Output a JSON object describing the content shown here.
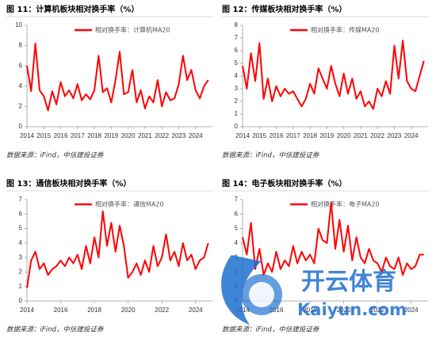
{
  "chart_data": [
    {
      "type": "line",
      "title": "图 11：计算机板块相对换手率（%）",
      "source": "数据来源：iFind，中信建投证券",
      "x": [
        2014,
        2014.25,
        2014.5,
        2014.75,
        2015,
        2015.25,
        2015.5,
        2015.75,
        2016,
        2016.25,
        2016.5,
        2016.75,
        2017,
        2017.25,
        2017.5,
        2017.75,
        2018,
        2018.25,
        2018.5,
        2018.75,
        2019,
        2019.25,
        2019.5,
        2019.75,
        2020,
        2020.25,
        2020.5,
        2020.75,
        2021,
        2021.25,
        2021.5,
        2021.75,
        2022,
        2022.25,
        2022.5,
        2022.75,
        2023,
        2023.25,
        2023.5,
        2023.75,
        2024,
        2024.25,
        2024.5,
        2024.75
      ],
      "series": [
        {
          "name": "相对换手率：计算机MA20",
          "color": "#ff0000",
          "values": [
            6.0,
            3.5,
            8.2,
            3.6,
            3.0,
            1.6,
            3.5,
            2.2,
            4.4,
            3.0,
            3.6,
            2.8,
            4.2,
            2.6,
            3.2,
            2.7,
            3.6,
            7.0,
            3.4,
            3.8,
            2.4,
            4.6,
            7.4,
            3.2,
            3.4,
            5.6,
            2.4,
            3.6,
            1.8,
            3.0,
            2.4,
            4.6,
            2.0,
            3.4,
            2.6,
            2.8,
            4.2,
            7.0,
            4.6,
            5.6,
            3.6,
            2.8,
            4.0,
            4.6
          ]
        }
      ],
      "xlim": [
        2014,
        2025
      ],
      "xticks": [
        2014,
        2015,
        2016,
        2017,
        2018,
        2019,
        2020,
        2021,
        2022,
        2023,
        2024
      ],
      "ylim": [
        0,
        10
      ],
      "yticks": [
        0,
        2,
        4,
        6,
        8,
        10
      ]
    },
    {
      "type": "line",
      "title": "图 12：传媒板块相对换手率（%）",
      "source": "数据来源：iFind，中信建投证券",
      "x": [
        2014,
        2014.25,
        2014.5,
        2014.75,
        2015,
        2015.25,
        2015.5,
        2015.75,
        2016,
        2016.25,
        2016.5,
        2016.75,
        2017,
        2017.25,
        2017.5,
        2017.75,
        2018,
        2018.25,
        2018.5,
        2018.75,
        2019,
        2019.25,
        2019.5,
        2019.75,
        2020,
        2020.25,
        2020.5,
        2020.75,
        2021,
        2021.25,
        2021.5,
        2021.75,
        2022,
        2022.25,
        2022.5,
        2022.75,
        2023,
        2023.25,
        2023.5,
        2023.75,
        2024,
        2024.25,
        2024.5,
        2024.75
      ],
      "series": [
        {
          "name": "相对换手率：传媒MA20",
          "color": "#ff0000",
          "values": [
            4.8,
            3.0,
            5.8,
            3.6,
            6.6,
            2.2,
            3.8,
            2.0,
            3.2,
            2.4,
            3.0,
            2.6,
            2.8,
            2.2,
            1.6,
            2.2,
            3.4,
            2.6,
            4.6,
            3.8,
            3.0,
            4.8,
            3.4,
            2.4,
            4.2,
            2.6,
            3.8,
            2.2,
            2.8,
            1.6,
            2.0,
            1.4,
            3.0,
            2.4,
            3.6,
            2.6,
            6.4,
            3.8,
            6.8,
            3.6,
            3.0,
            2.8,
            4.0,
            5.2
          ]
        }
      ],
      "xlim": [
        2014,
        2025
      ],
      "xticks": [
        2014,
        2015,
        2016,
        2017,
        2018,
        2019,
        2020,
        2021,
        2022,
        2023,
        2024
      ],
      "ylim": [
        0,
        8
      ],
      "yticks": [
        0,
        1,
        2,
        3,
        4,
        5,
        6,
        7,
        8
      ]
    },
    {
      "type": "line",
      "title": "图 13：通信板块相对换手率（%）",
      "source": "数据来源：iFind，中信建投证券",
      "x": [
        2014,
        2014.25,
        2014.5,
        2014.75,
        2015,
        2015.25,
        2015.5,
        2015.75,
        2016,
        2016.25,
        2016.5,
        2016.75,
        2017,
        2017.25,
        2017.5,
        2017.75,
        2018,
        2018.25,
        2018.5,
        2018.75,
        2019,
        2019.25,
        2019.5,
        2019.75,
        2020,
        2020.25,
        2020.5,
        2020.75,
        2021,
        2021.25,
        2021.5,
        2021.75,
        2022,
        2022.25,
        2022.5,
        2022.75,
        2023,
        2023.25,
        2023.5,
        2023.75,
        2024,
        2024.25,
        2024.5,
        2024.75
      ],
      "series": [
        {
          "name": "相对换手率：通信MA20",
          "color": "#ff0000",
          "values": [
            0.9,
            2.8,
            3.4,
            2.2,
            2.6,
            1.8,
            2.2,
            2.4,
            2.8,
            2.4,
            3.0,
            2.6,
            3.2,
            2.2,
            3.8,
            2.6,
            4.4,
            3.0,
            6.2,
            3.8,
            5.4,
            3.4,
            5.2,
            3.8,
            1.6,
            2.0,
            2.6,
            1.8,
            2.8,
            2.0,
            3.8,
            2.4,
            3.0,
            4.6,
            2.8,
            3.4,
            2.4,
            4.0,
            2.8,
            3.2,
            2.2,
            2.8,
            3.0,
            4.0
          ]
        }
      ],
      "xlim": [
        2014,
        2025
      ],
      "xticks": [
        2014,
        2016,
        2018,
        2020,
        2022,
        2024
      ],
      "ylim": [
        0,
        7
      ],
      "yticks": [
        0,
        1,
        2,
        3,
        4,
        5,
        6,
        7
      ]
    },
    {
      "type": "line",
      "title": "图 14：电子板块相对换手率（%）",
      "source": "数据来源：iFind，中信建投证券",
      "x": [
        2014,
        2014.25,
        2014.5,
        2014.75,
        2015,
        2015.25,
        2015.5,
        2015.75,
        2016,
        2016.25,
        2016.5,
        2016.75,
        2017,
        2017.25,
        2017.5,
        2017.75,
        2018,
        2018.25,
        2018.5,
        2018.75,
        2019,
        2019.25,
        2019.5,
        2019.75,
        2020,
        2020.25,
        2020.5,
        2020.75,
        2021,
        2021.25,
        2021.5,
        2021.75,
        2022,
        2022.25,
        2022.5,
        2022.75,
        2023,
        2023.25,
        2023.5,
        2023.75,
        2024,
        2024.25,
        2024.5,
        2024.75
      ],
      "series": [
        {
          "name": "相对换手率：电子MA20",
          "color": "#ff0000",
          "values": [
            4.4,
            3.2,
            5.4,
            2.2,
            3.6,
            1.8,
            2.6,
            2.0,
            3.4,
            2.2,
            2.8,
            2.4,
            3.8,
            2.6,
            3.4,
            2.8,
            3.2,
            2.6,
            5.0,
            4.2,
            4.0,
            6.8,
            3.6,
            5.6,
            3.4,
            5.2,
            2.8,
            4.4,
            3.0,
            2.6,
            3.6,
            2.8,
            2.6,
            2.0,
            3.0,
            2.4,
            2.2,
            3.0,
            1.8,
            2.6,
            2.2,
            2.4,
            3.2,
            3.2
          ]
        }
      ],
      "xlim": [
        2014,
        2025
      ],
      "xticks": [
        2014,
        2016,
        2018,
        2020,
        2022,
        2024
      ],
      "ylim": [
        0,
        7
      ],
      "yticks": [
        0,
        1,
        2,
        3,
        4,
        5,
        6,
        7
      ]
    }
  ],
  "watermark": {
    "brand": "开云体育",
    "site": "Kaiyun.com"
  }
}
